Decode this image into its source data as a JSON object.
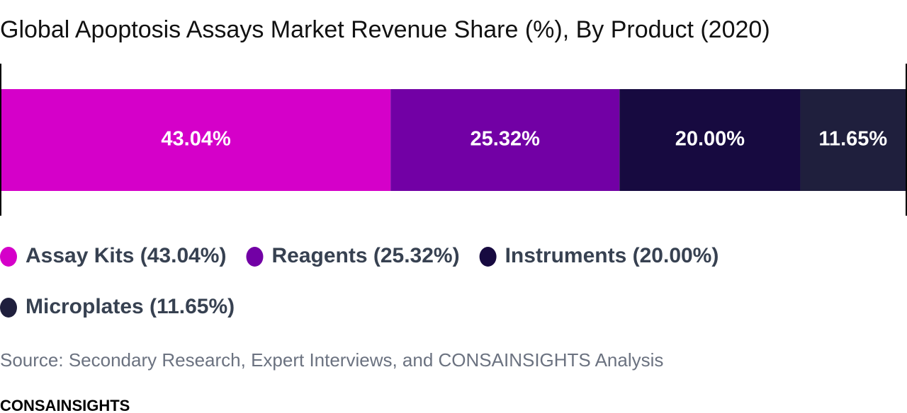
{
  "chart_data": {
    "type": "stacked_bar_100",
    "title": "Global Apoptosis Assays Market Revenue Share (%), By Product (2020)",
    "xlim": [
      0,
      100
    ],
    "series": [
      {
        "name": "Assay Kits (43.04%)",
        "color": "#d500c9",
        "values": [
          43.04
        ],
        "value_labels": [
          "43.04%"
        ]
      },
      {
        "name": "Reagents (25.32%)",
        "color": "#7200a5",
        "values": [
          25.32
        ],
        "value_labels": [
          "25.32%"
        ]
      },
      {
        "name": "Instruments (20.00%)",
        "color": "#170a40",
        "values": [
          20.0
        ],
        "value_labels": [
          "20.00%"
        ]
      },
      {
        "name": "Microplates (11.65%)",
        "color": "#1f1f3d",
        "values": [
          11.65
        ],
        "value_labels": [
          "11.65%"
        ]
      }
    ],
    "source": "Source: Secondary Research, Expert Interviews, and CONSAINSIGHTS Analysis",
    "brand": "CONSAINSIGHTS"
  }
}
